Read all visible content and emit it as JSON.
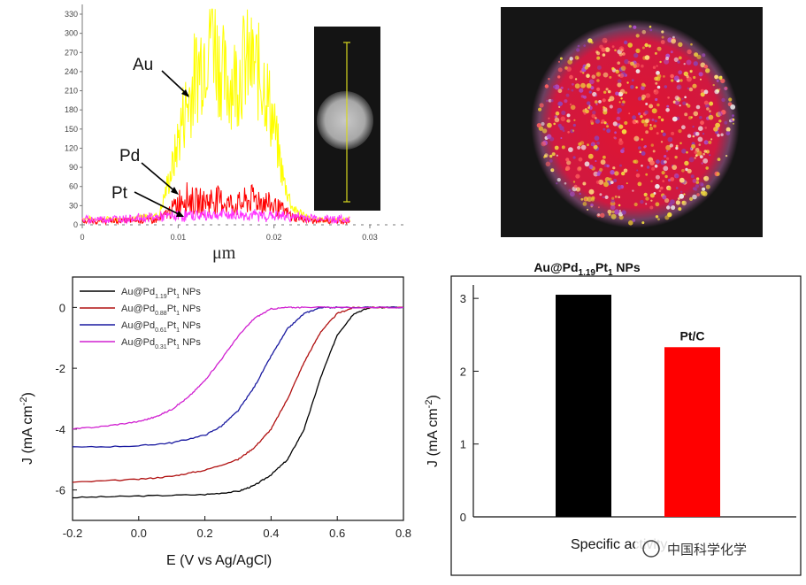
{
  "chart_data": [
    {
      "type": "line",
      "title": "",
      "xlabel": "μm",
      "ylabel": "",
      "xlim": [
        0,
        0.033
      ],
      "ylim": [
        0,
        340
      ],
      "x_ticks": [
        "0",
        "0.01",
        "0.02",
        "0.03"
      ],
      "y_ticks": [
        "0",
        "30",
        "60",
        "90",
        "120",
        "150",
        "180",
        "210",
        "240",
        "270",
        "300",
        "330"
      ],
      "series": [
        {
          "name": "Au",
          "color": "#ffff00",
          "x": [
            0,
            0.004,
            0.008,
            0.0095,
            0.0105,
            0.012,
            0.013,
            0.0135,
            0.014,
            0.015,
            0.016,
            0.017,
            0.018,
            0.019,
            0.02,
            0.021,
            0.022,
            0.024,
            0.028
          ],
          "y": [
            10,
            8,
            15,
            95,
            170,
            240,
            290,
            335,
            270,
            220,
            230,
            255,
            245,
            225,
            155,
            70,
            25,
            8,
            8
          ]
        },
        {
          "name": "Pd",
          "color": "#ff0000",
          "x": [
            0,
            0.008,
            0.0095,
            0.0105,
            0.012,
            0.014,
            0.016,
            0.018,
            0.02,
            0.022,
            0.024,
            0.028
          ],
          "y": [
            5,
            8,
            25,
            45,
            35,
            40,
            30,
            42,
            30,
            12,
            6,
            5
          ]
        },
        {
          "name": "Pt",
          "color": "#ff33ff",
          "x": [
            0,
            0.005,
            0.01,
            0.015,
            0.02,
            0.025,
            0.028
          ],
          "y": [
            8,
            10,
            14,
            16,
            14,
            10,
            8
          ]
        }
      ],
      "annotations": [
        "Au",
        "Pd",
        "Pt"
      ]
    },
    {
      "type": "line",
      "title": "",
      "xlabel": "E (V vs Ag/AgCl)",
      "ylabel": "J (mA cm⁻²)",
      "xlim": [
        -0.2,
        0.8
      ],
      "ylim": [
        -7,
        1
      ],
      "x_ticks": [
        "-0.2",
        "0.0",
        "0.2",
        "0.4",
        "0.6",
        "0.8"
      ],
      "y_ticks": [
        "-6",
        "-4",
        "-2",
        "0"
      ],
      "series": [
        {
          "name": "Au@Pd1.19Pt1 NPs",
          "legend_main": "Au@Pd",
          "legend_sub1": "1.19",
          "legend_mid": "Pt",
          "legend_sub2": "1",
          "legend_tail": " NPs",
          "color": "#000000",
          "x": [
            -0.2,
            0.0,
            0.2,
            0.3,
            0.35,
            0.4,
            0.45,
            0.5,
            0.55,
            0.6,
            0.65,
            0.7,
            0.8
          ],
          "y": [
            -6.25,
            -6.2,
            -6.15,
            -6.05,
            -5.85,
            -5.5,
            -5.0,
            -4.0,
            -2.3,
            -0.9,
            -0.2,
            0.0,
            0.0
          ]
        },
        {
          "name": "Au@Pd0.88Pt1 NPs",
          "legend_main": "Au@Pd",
          "legend_sub1": "0.88",
          "legend_mid": "Pt",
          "legend_sub2": "1",
          "legend_tail": " NPs",
          "color": "#b01010",
          "x": [
            -0.2,
            0.0,
            0.1,
            0.2,
            0.3,
            0.35,
            0.4,
            0.45,
            0.5,
            0.55,
            0.6,
            0.65,
            0.7,
            0.8
          ],
          "y": [
            -5.75,
            -5.65,
            -5.55,
            -5.35,
            -5.0,
            -4.6,
            -4.0,
            -3.0,
            -1.8,
            -0.8,
            -0.2,
            0.0,
            0.0,
            0.0
          ]
        },
        {
          "name": "Au@Pd0.61Pt1 NPs",
          "legend_main": "Au@Pd",
          "legend_sub1": "0.61",
          "legend_mid": "Pt",
          "legend_sub2": "1",
          "legend_tail": " NPs",
          "color": "#1a1aa0",
          "x": [
            -0.2,
            0.0,
            0.1,
            0.2,
            0.25,
            0.3,
            0.35,
            0.4,
            0.45,
            0.5,
            0.55,
            0.6,
            0.8
          ],
          "y": [
            -4.6,
            -4.55,
            -4.45,
            -4.2,
            -3.9,
            -3.4,
            -2.6,
            -1.6,
            -0.7,
            -0.2,
            0.0,
            0.0,
            0.0
          ]
        },
        {
          "name": "Au@Pd0.31Pt1 NPs",
          "legend_main": "Au@Pd",
          "legend_sub1": "0.31",
          "legend_mid": "Pt",
          "legend_sub2": "1",
          "legend_tail": " NPs",
          "color": "#d020d0",
          "x": [
            -0.2,
            -0.1,
            0.0,
            0.05,
            0.1,
            0.15,
            0.2,
            0.25,
            0.3,
            0.35,
            0.4,
            0.45,
            0.5,
            0.8
          ],
          "y": [
            -4.0,
            -3.9,
            -3.75,
            -3.6,
            -3.35,
            -2.95,
            -2.4,
            -1.7,
            -0.95,
            -0.35,
            -0.05,
            0.0,
            0.0,
            0.0
          ]
        }
      ]
    },
    {
      "type": "bar",
      "title": "",
      "xlabel": "Specific activity",
      "ylabel": "J (mA cm⁻²)",
      "ylim": [
        0,
        3.5
      ],
      "y_ticks": [
        "0",
        "1",
        "2",
        "3"
      ],
      "categories": [
        "Au@Pd1.19Pt1 NPs",
        "Pt/C"
      ],
      "values": [
        3.05,
        2.33
      ],
      "colors": [
        "#000000",
        "#ff0000"
      ],
      "bar_labels": [
        {
          "main": "Au@Pd",
          "sub1": "1.19",
          "mid": "Pt",
          "sub2": "1",
          "tail": " NPs"
        },
        {
          "main": "Pt/C"
        }
      ]
    }
  ],
  "watermark": "中国科学化学"
}
